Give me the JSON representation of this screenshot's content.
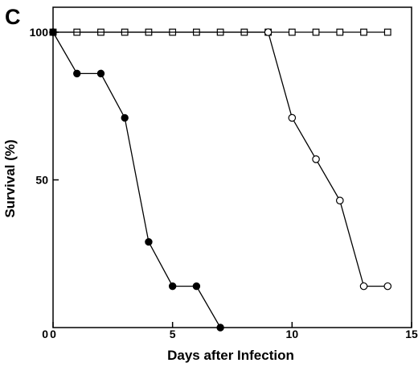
{
  "panel_label": "C",
  "chart_data": {
    "type": "line",
    "title": "",
    "xlabel": "Days after Infection",
    "ylabel": "Survival (%)",
    "xlim": [
      0,
      15
    ],
    "ylim": [
      0,
      100
    ],
    "x_ticks": [
      0,
      5,
      10,
      15
    ],
    "y_ticks": [
      50,
      100
    ],
    "grid": false,
    "series": [
      {
        "marker": "open-square",
        "x": [
          0,
          1,
          2,
          3,
          4,
          5,
          6,
          7,
          8,
          9,
          10,
          11,
          12,
          13,
          14
        ],
        "y": [
          100,
          100,
          100,
          100,
          100,
          100,
          100,
          100,
          100,
          100,
          100,
          100,
          100,
          100,
          100
        ]
      },
      {
        "marker": "open-circle",
        "x": [
          0,
          9,
          10,
          11,
          12,
          13,
          14
        ],
        "y": [
          100,
          100,
          71,
          57,
          43,
          14,
          14
        ]
      },
      {
        "marker": "filled-circle",
        "x": [
          0,
          1,
          2,
          3,
          4,
          5,
          6,
          7
        ],
        "y": [
          100,
          86,
          86,
          71,
          29,
          14,
          14,
          0
        ]
      }
    ]
  }
}
